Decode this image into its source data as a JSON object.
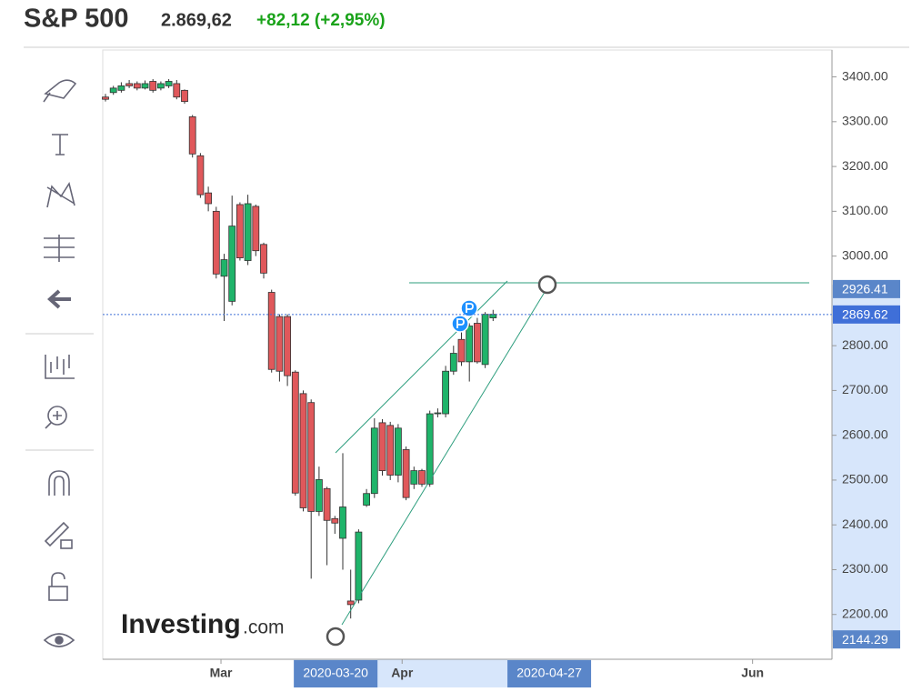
{
  "header": {
    "title": "S&P 500",
    "price": "2.869,62",
    "change": "+82,12 (+2,95%)"
  },
  "chart_data": {
    "type": "candlestick",
    "categories": [
      null,
      null,
      null,
      null,
      null,
      null,
      null,
      null,
      null,
      null,
      null,
      null,
      null,
      null,
      null,
      null,
      null,
      null,
      null,
      null,
      null,
      null,
      null,
      null,
      null,
      null,
      null,
      null,
      null,
      null,
      null,
      null,
      null,
      null,
      null,
      null,
      null,
      null,
      null,
      null,
      null,
      null,
      null,
      null,
      null,
      null,
      null,
      null,
      null,
      null
    ],
    "open": [
      3355,
      3365,
      3370,
      3385,
      3385,
      3375,
      3390,
      3375,
      3380,
      3385,
      3370,
      3311,
      3224,
      3141,
      3100,
      2955,
      2899,
      3115,
      2990,
      3111,
      3026,
      2919,
      2865,
      2865,
      2741,
      2693,
      2673,
      2430,
      2481,
      2414,
      2370,
      2230,
      2232,
      2444,
      2470,
      2628,
      2622,
      2511,
      2568,
      2491,
      2521,
      2491,
      2648,
      2648,
      2743,
      2814,
      2764,
      2850,
      2758,
      2862
    ],
    "high": [
      3362,
      3380,
      3388,
      3393,
      3390,
      3392,
      3395,
      3390,
      3395,
      3393,
      3372,
      3315,
      3230,
      3155,
      3110,
      3005,
      3135,
      3120,
      3137,
      3115,
      3030,
      2925,
      2870,
      2870,
      2745,
      2700,
      2680,
      2530,
      2485,
      2420,
      2560,
      2300,
      2390,
      2480,
      2638,
      2636,
      2630,
      2625,
      2575,
      2530,
      2525,
      2655,
      2660,
      2755,
      2800,
      2830,
      2850,
      2862,
      2875,
      2880
    ],
    "low": [
      3345,
      3360,
      3365,
      3375,
      3370,
      3372,
      3365,
      3370,
      3375,
      3350,
      3340,
      3220,
      3130,
      3100,
      2950,
      2855,
      2890,
      2990,
      2980,
      3000,
      2950,
      2740,
      2720,
      2710,
      2465,
      2430,
      2280,
      2420,
      2310,
      2380,
      2300,
      2191,
      2225,
      2440,
      2460,
      2510,
      2500,
      2495,
      2455,
      2480,
      2485,
      2485,
      2640,
      2640,
      2735,
      2755,
      2720,
      2760,
      2750,
      2855
    ],
    "close": [
      3350,
      3375,
      3380,
      3380,
      3375,
      3385,
      3370,
      3385,
      3390,
      3355,
      3345,
      3228,
      3137,
      3117,
      2960,
      2992,
      3067,
      2996,
      3117,
      3012,
      2962,
      2747,
      2743,
      2733,
      2471,
      2438,
      2430,
      2501,
      2410,
      2404,
      2440,
      2222,
      2384,
      2470,
      2616,
      2521,
      2511,
      2616,
      2461,
      2521,
      2491,
      2648,
      2650,
      2743,
      2783,
      2764,
      2844,
      2764,
      2870,
      2870
    ],
    "up_color": "#1fb46a",
    "down_color": "#e0585b",
    "ylim": [
      2100,
      3460
    ],
    "yticks": [
      {
        "value": 2200,
        "label": "2200.00"
      },
      {
        "value": 2300,
        "label": "2300.00"
      },
      {
        "value": 2400,
        "label": "2400.00"
      },
      {
        "value": 2500,
        "label": "2500.00"
      },
      {
        "value": 2600,
        "label": "2600.00"
      },
      {
        "value": 2700,
        "label": "2700.00"
      },
      {
        "value": 2800,
        "label": "2800.00"
      },
      {
        "value": 3000,
        "label": "3000.00"
      },
      {
        "value": 3100,
        "label": "3100.00"
      },
      {
        "value": 3200,
        "label": "3200.00"
      },
      {
        "value": 3300,
        "label": "3300.00"
      },
      {
        "value": 3400,
        "label": "3400.00"
      }
    ],
    "xticks": [
      {
        "value": 14.6,
        "label": "Mar"
      },
      {
        "value": 37.5,
        "label": "Apr"
      },
      {
        "value": 81.8,
        "label": "Jun"
      }
    ],
    "x_markers": [
      {
        "value": 29.1,
        "label": "2020-03-20"
      },
      {
        "value": 56.1,
        "label": "2020-04-27"
      }
    ],
    "price_markers": [
      {
        "value": 2926.41,
        "label": "2926.41"
      },
      {
        "value": 2869.62,
        "label": "2869.62"
      },
      {
        "value": 2144.29,
        "label": "2144.29"
      }
    ],
    "watermark": "Investing",
    "watermark_suffix": ".com"
  }
}
